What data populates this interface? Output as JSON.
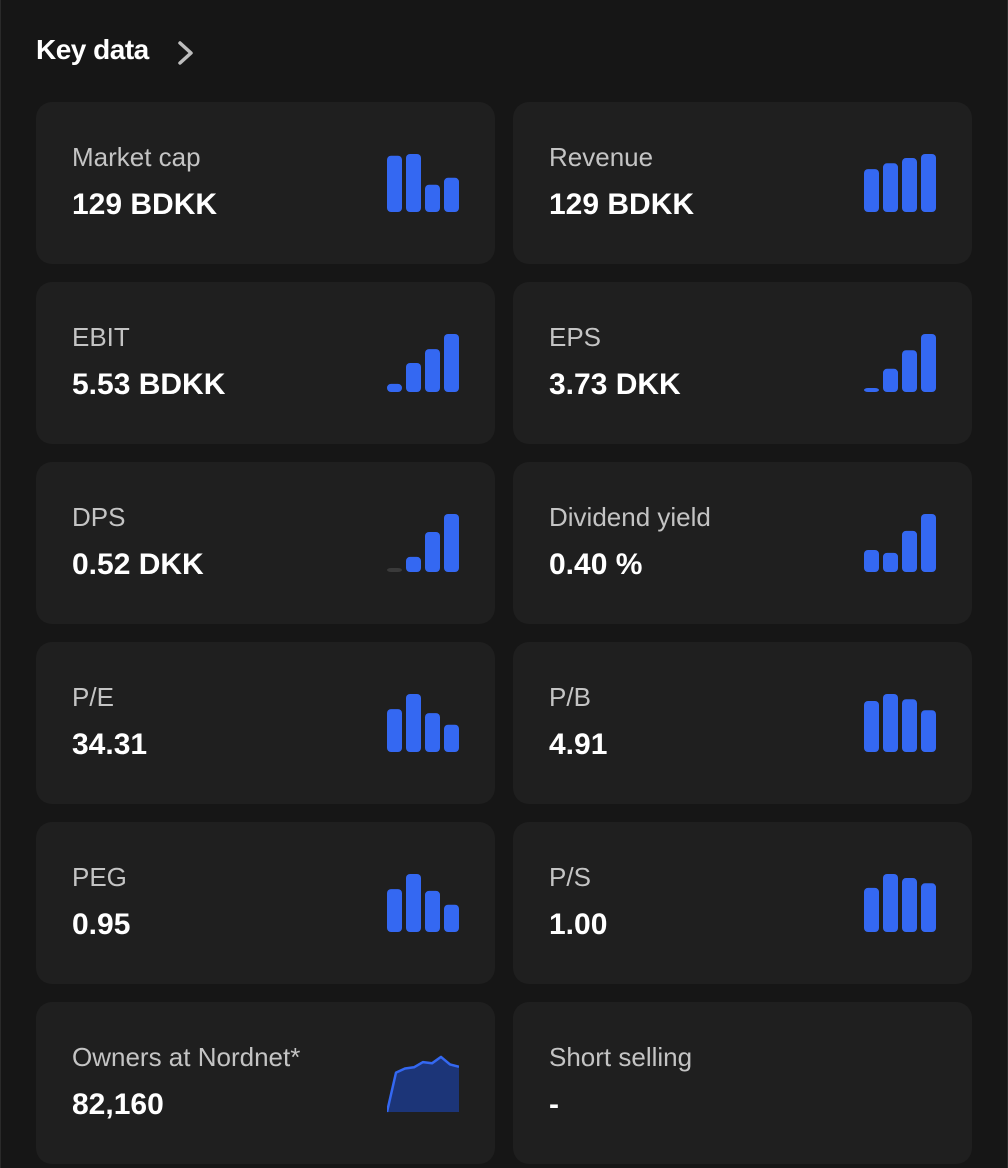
{
  "header": {
    "title": "Key data"
  },
  "cards": [
    {
      "label": "Market cap",
      "value": "129 BDKK",
      "bars": [
        97,
        100,
        47,
        59
      ]
    },
    {
      "label": "Revenue",
      "value": "129 BDKK",
      "bars": [
        74,
        84,
        93,
        100
      ]
    },
    {
      "label": "EBIT",
      "value": "5.53 BDKK",
      "bars": [
        14,
        50,
        74,
        100
      ]
    },
    {
      "label": "EPS",
      "value": "3.73 DKK",
      "bars": [
        5,
        40,
        72,
        100
      ]
    },
    {
      "label": "DPS",
      "value": "0.52 DKK",
      "bars": [
        0,
        26,
        69,
        100
      ]
    },
    {
      "label": "Dividend yield",
      "value": "0.40 %",
      "bars": [
        38,
        33,
        71,
        100
      ]
    },
    {
      "label": "P/E",
      "value": "34.31",
      "bars": [
        74,
        100,
        67,
        47
      ]
    },
    {
      "label": "P/B",
      "value": "4.91",
      "bars": [
        88,
        100,
        91,
        72
      ]
    },
    {
      "label": "PEG",
      "value": "0.95",
      "bars": [
        74,
        100,
        71,
        47
      ]
    },
    {
      "label": "P/S",
      "value": "1.00",
      "bars": [
        76,
        100,
        93,
        84
      ]
    },
    {
      "label": "Owners at Nordnet*",
      "value": "82,160",
      "area": [
        0,
        68,
        75,
        77,
        86,
        84,
        95,
        82,
        78
      ]
    },
    {
      "label": "Short selling",
      "value": "-"
    }
  ]
}
